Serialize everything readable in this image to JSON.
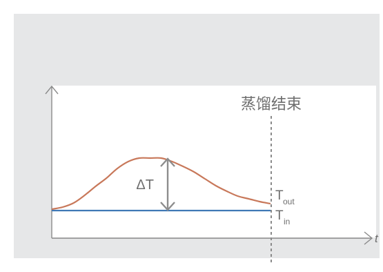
{
  "colors": {
    "outer_background": "#e6e7e8",
    "plot_background": "#ffffff",
    "axis": "#8a8a8a",
    "t_out_curve": "#c8785a",
    "t_in_line": "#3f78b5",
    "delta_arrow": "#8c8c8c",
    "end_marker": "#8a8a8a",
    "text": "#6e6e6e"
  },
  "chart_data": {
    "type": "line",
    "title": "",
    "xlabel": "t",
    "ylabel": "",
    "grid": false,
    "legend": "none",
    "xlim": [
      0,
      10
    ],
    "ylim": [
      0,
      10
    ],
    "series": [
      {
        "name": "T_out",
        "label_main": "T",
        "label_sub": "out",
        "x": [
          0,
          0.5,
          1,
          1.5,
          2,
          2.5,
          3,
          3.5,
          4,
          4.5,
          5,
          5.5,
          6,
          6.5,
          7,
          7.5,
          8,
          8.5,
          9,
          9.5,
          10
        ],
        "y": [
          2.1,
          2.25,
          2.55,
          3.1,
          3.75,
          4.35,
          5.05,
          5.55,
          5.8,
          5.8,
          5.8,
          5.55,
          5.2,
          4.8,
          4.3,
          3.8,
          3.4,
          3.05,
          2.85,
          2.65,
          2.5
        ]
      },
      {
        "name": "T_in",
        "label_main": "T",
        "label_sub": "in",
        "x": [
          0,
          10
        ],
        "y": [
          2.0,
          2.0
        ]
      }
    ],
    "annotations": {
      "delta_T": {
        "text": "ΔT",
        "x": 5.3,
        "y_from": 2.0,
        "y_to": 5.8
      },
      "end_marker": {
        "text": "蒸馏结束",
        "x": 10
      }
    }
  }
}
